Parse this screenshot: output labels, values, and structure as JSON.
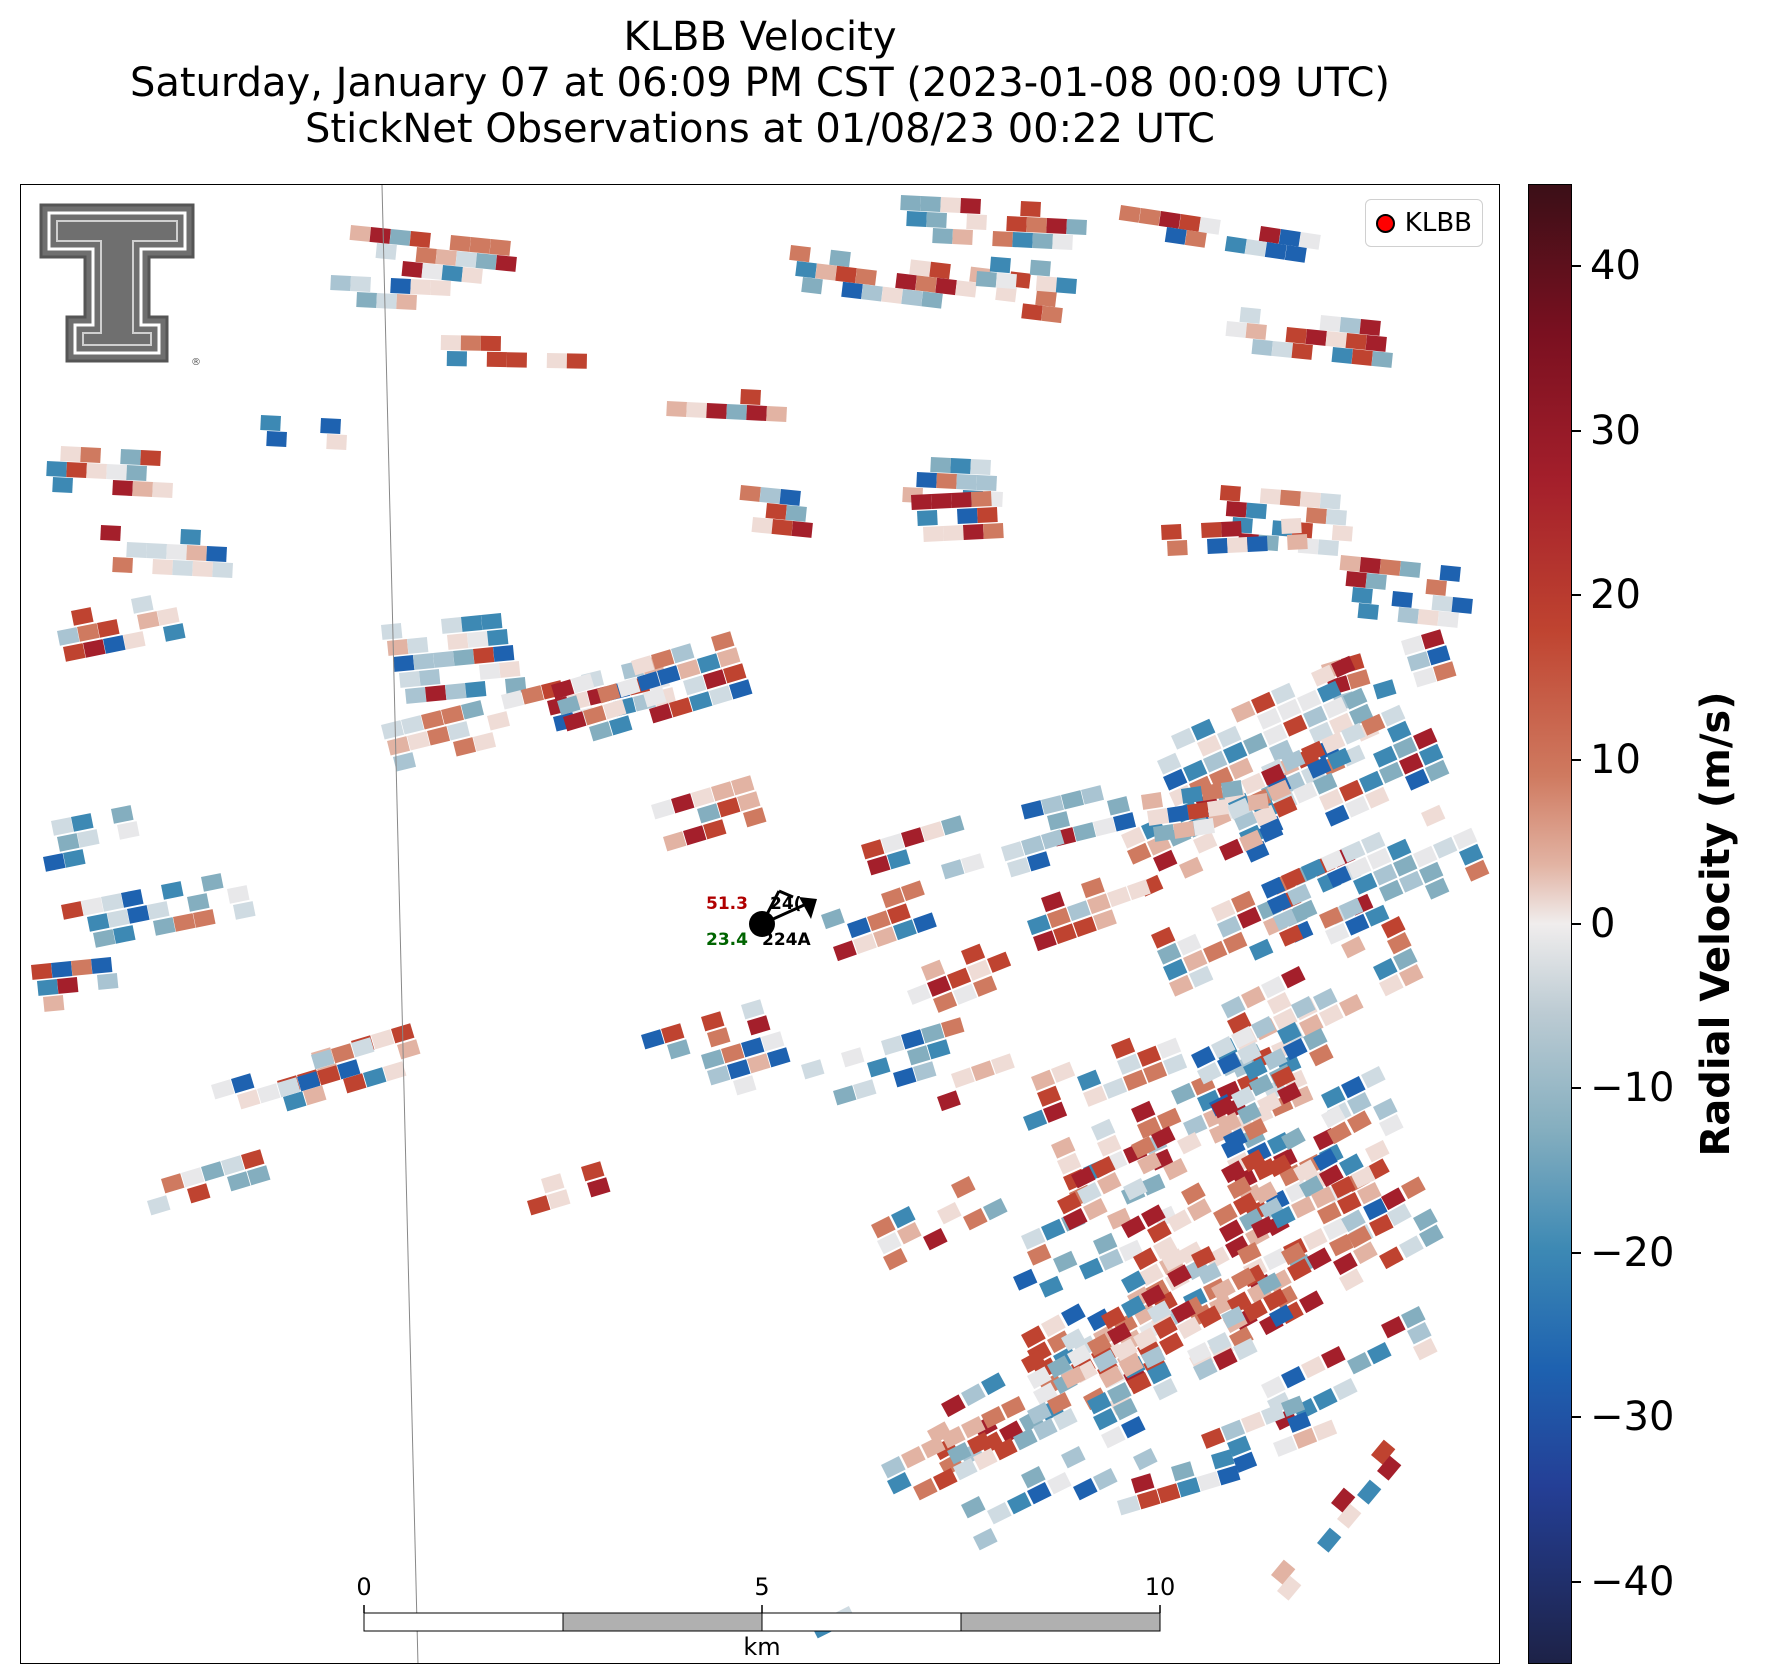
{
  "title": {
    "line1": "KLBB Velocity",
    "line2": "Saturday, January 07 at 06:09 PM CST (2023-01-08 00:09 UTC)",
    "line3": "StickNet Observations at 01/08/23 00:22 UTC"
  },
  "logo": {
    "name": "texas-tech-double-t-logo",
    "mark": "®"
  },
  "legend": {
    "label": "KLBB",
    "marker_color": "#ff0000"
  },
  "station": {
    "id": "224A",
    "temperature": "51.3",
    "dewpoint": "23.4",
    "obscured_id_fragment": "24("
  },
  "scalebar": {
    "labels": [
      "0",
      "5",
      "10"
    ],
    "unit": "km"
  },
  "colorbar": {
    "label": "Radial Velocity (m/s)",
    "ticks": [
      "40",
      "30",
      "20",
      "10",
      "0",
      "−10",
      "−20",
      "−30",
      "−40"
    ],
    "range": [
      -45,
      45
    ],
    "colors": [
      "#3b0f17",
      "#a41f2b",
      "#cf7a60",
      "#f0eded",
      "#84aebf",
      "#1e62b0",
      "#1d2247"
    ]
  },
  "colors": {
    "temperature_text": "#b00000",
    "dewpoint_text": "#006400",
    "station_id_text": "#000000"
  }
}
